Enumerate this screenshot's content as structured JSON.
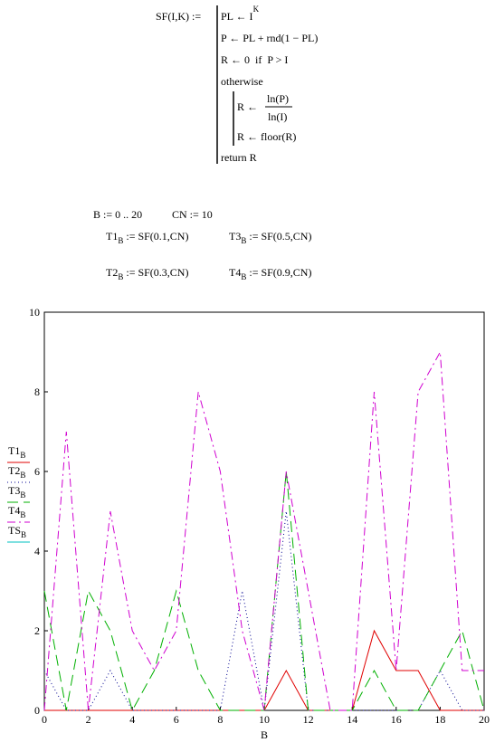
{
  "worksheet": {
    "program": {
      "header": "SF(I,K) :=",
      "lines": [
        {
          "text": "PL ← I",
          "sup": "K"
        },
        {
          "text": "P ← PL + rnd(1 − PL)"
        },
        {
          "text": "R ← 0  if  P > I"
        },
        {
          "text": "otherwise"
        }
      ],
      "inner": {
        "assign": "R ←",
        "numerator": "ln(P)",
        "denominator": "ln(I)",
        "line": "R ← floor(R)"
      },
      "return": "return R"
    },
    "definitions": [
      "B := 0 .. 20",
      "CN := 10"
    ],
    "assignments": [
      {
        "var": "T1",
        "sub": "B",
        "expr": " := SF(0.1,CN)"
      },
      {
        "var": "T3",
        "sub": "B",
        "expr": " := SF(0.5,CN)"
      },
      {
        "var": "T2",
        "sub": "B",
        "expr": " := SF(0.3,CN)"
      },
      {
        "var": "T4",
        "sub": "B",
        "expr": " := SF(0.9,CN)"
      }
    ]
  },
  "chart_data": {
    "type": "line",
    "x_label": "B",
    "x": [
      0,
      1,
      2,
      3,
      4,
      5,
      6,
      7,
      8,
      9,
      10,
      11,
      12,
      13,
      14,
      15,
      16,
      17,
      18,
      19,
      20
    ],
    "xlim": [
      0,
      20
    ],
    "xticks": [
      0,
      2,
      4,
      6,
      8,
      10,
      12,
      14,
      16,
      18,
      20
    ],
    "ylim": [
      0,
      10
    ],
    "yticks": [
      0,
      2,
      4,
      6,
      8,
      10
    ],
    "series": [
      {
        "name": "T1",
        "name_sub": "B",
        "color": "#e00000",
        "dash": "none",
        "values": [
          0,
          0,
          0,
          0,
          0,
          0,
          0,
          0,
          0,
          0,
          0,
          1,
          0,
          0,
          0,
          2,
          1,
          1,
          0,
          0,
          0
        ]
      },
      {
        "name": "T2",
        "name_sub": "B",
        "color": "#000090",
        "dash": "1,3",
        "values": [
          1,
          0,
          0,
          1,
          0,
          0,
          0,
          0,
          0,
          3,
          0,
          5,
          0,
          0,
          0,
          0,
          0,
          0,
          1,
          0,
          0
        ]
      },
      {
        "name": "T3",
        "name_sub": "B",
        "color": "#00b000",
        "dash": "12,6",
        "values": [
          3,
          0,
          3,
          2,
          0,
          1,
          3,
          1,
          0,
          0,
          0,
          6,
          0,
          0,
          0,
          1,
          0,
          0,
          1,
          2,
          0
        ]
      },
      {
        "name": "T4",
        "name_sub": "B",
        "color": "#d000d0",
        "dash": "9,4,2,4",
        "values": [
          0,
          7,
          0,
          5,
          2,
          1,
          2,
          8,
          6,
          2,
          0,
          6,
          3,
          0,
          0,
          8,
          1,
          8,
          9,
          1,
          1
        ]
      },
      {
        "name": "TS",
        "name_sub": "B",
        "color": "#00c0c0",
        "dash": "none",
        "values": [
          null,
          null,
          null,
          null,
          null,
          null,
          null,
          null,
          null,
          null,
          null,
          null,
          null,
          null,
          null,
          null,
          null,
          null,
          null,
          null,
          null
        ]
      }
    ]
  }
}
